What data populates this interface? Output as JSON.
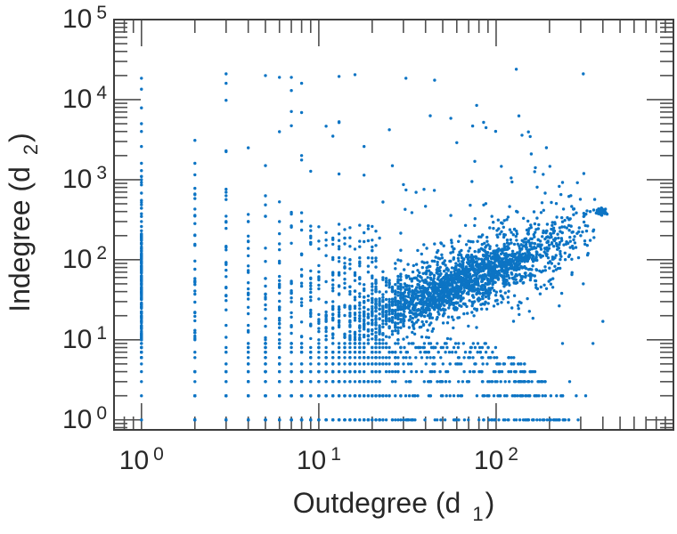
{
  "figure": {
    "background": "#ffffff",
    "frame_color": "#3d3d3d",
    "tick_color": "#4f4f4f",
    "text_color": "#282828"
  },
  "chart_data": {
    "type": "scatter",
    "title": "",
    "xlabel": {
      "text": "Outdegree (d",
      "sub": "1",
      "close": ")"
    },
    "ylabel": {
      "text": "Indegree (d",
      "sub": "2",
      "close": ")"
    },
    "x_scale": "log",
    "y_scale": "log",
    "xlim": [
      0.7,
      1000
    ],
    "ylim": [
      0.75,
      100000
    ],
    "grid": false,
    "legend": "none",
    "marker_color": "#0c74c4",
    "marker_radius": 1.7,
    "seed": 7,
    "x_ticks": [
      {
        "base": "10",
        "exp": "0",
        "value": 1
      },
      {
        "base": "10",
        "exp": "1",
        "value": 10
      },
      {
        "base": "10",
        "exp": "2",
        "value": 100
      }
    ],
    "y_ticks": [
      {
        "base": "10",
        "exp": "0",
        "value": 1
      },
      {
        "base": "10",
        "exp": "1",
        "value": 10
      },
      {
        "base": "10",
        "exp": "2",
        "value": 100
      },
      {
        "base": "10",
        "exp": "3",
        "value": 1000
      },
      {
        "base": "10",
        "exp": "4",
        "value": 10000
      },
      {
        "base": "10",
        "exp": "5",
        "value": 100000
      }
    ],
    "points": [
      [
        1,
        1
      ],
      [
        1,
        2
      ],
      [
        1,
        3
      ],
      [
        1,
        4
      ],
      [
        1,
        5
      ],
      [
        1,
        6
      ],
      [
        1,
        8
      ],
      [
        1,
        230
      ],
      [
        1,
        260
      ],
      [
        1,
        300
      ],
      [
        1,
        1100
      ],
      [
        1,
        1300
      ],
      [
        1,
        1600
      ],
      [
        1,
        2600
      ],
      [
        1,
        4000
      ],
      [
        1,
        5000
      ],
      [
        1,
        7900
      ],
      [
        1,
        13500
      ],
      [
        1,
        18500
      ],
      [
        2,
        1150
      ],
      [
        2,
        1600
      ],
      [
        2,
        3100
      ],
      [
        3,
        760
      ],
      [
        3,
        2300
      ],
      [
        3,
        9800
      ],
      [
        3,
        16000
      ],
      [
        3,
        21000
      ],
      [
        4,
        2500
      ],
      [
        5,
        1500
      ],
      [
        5,
        20000
      ],
      [
        6,
        19000
      ],
      [
        7,
        13000
      ],
      [
        7,
        19000
      ],
      [
        8,
        2000
      ],
      [
        8,
        16000
      ],
      [
        13,
        19500
      ],
      [
        16,
        20500
      ],
      [
        31,
        18500
      ],
      [
        45,
        17500
      ],
      [
        130,
        24000
      ],
      [
        310,
        21000
      ],
      [
        12,
        3500
      ],
      [
        18,
        2600
      ],
      [
        25,
        4200
      ],
      [
        60,
        2900
      ],
      [
        85,
        5200
      ],
      [
        140,
        3600
      ],
      [
        107,
        1470
      ],
      [
        165,
        1260
      ],
      [
        189,
        680
      ],
      [
        205,
        520
      ],
      [
        220,
        340
      ],
      [
        240,
        430
      ],
      [
        260,
        115
      ],
      [
        300,
        200
      ],
      [
        310,
        50
      ],
      [
        330,
        120
      ],
      [
        352,
        9
      ],
      [
        400,
        17
      ],
      [
        237,
        9
      ],
      [
        283,
        2
      ],
      [
        216,
        1
      ],
      [
        290,
        1
      ],
      [
        320,
        2
      ],
      [
        260,
        3
      ]
    ],
    "generators": [
      {
        "kind": "column",
        "x": 1,
        "ly_min": 0.78,
        "ly_max": 2.33,
        "n": 175,
        "pow": 1
      },
      {
        "kind": "column",
        "x": 1,
        "ly_min": 2.33,
        "ly_max": 3.05,
        "n": 12,
        "pow": 1
      },
      {
        "kind": "column",
        "x": 2,
        "ly_min": 0,
        "ly_max": 3.0,
        "n": 52,
        "pow": 1.7
      },
      {
        "kind": "column",
        "x": 3,
        "ly_min": 0,
        "ly_max": 2.9,
        "n": 50,
        "pow": 1.7
      },
      {
        "kind": "column",
        "x": 4,
        "ly_min": 0,
        "ly_max": 2.85,
        "n": 46,
        "pow": 1.7
      },
      {
        "kind": "column",
        "x": 5,
        "ly_min": 0,
        "ly_max": 2.8,
        "n": 45,
        "pow": 1.7
      },
      {
        "kind": "column",
        "x": 6,
        "ly_min": 0,
        "ly_max": 2.75,
        "n": 42,
        "pow": 1.7
      },
      {
        "kind": "column",
        "x": 7,
        "ly_min": 0,
        "ly_max": 2.7,
        "n": 40,
        "pow": 1.7
      },
      {
        "kind": "column",
        "x": 8,
        "ly_min": 0,
        "ly_max": 2.65,
        "n": 38,
        "pow": 1.7
      },
      {
        "kind": "column",
        "x": 9,
        "ly_min": 0,
        "ly_max": 2.6,
        "n": 36,
        "pow": 1.7
      },
      {
        "kind": "columns",
        "x_start": 10,
        "x_end": 22,
        "n_start": 34,
        "n_end": 24,
        "ly_min": 0,
        "ly_max": 2.45,
        "pow": 1.6
      },
      {
        "kind": "row",
        "y": 1,
        "lx_min": 0.15,
        "lx_max": 2.42,
        "n": 135,
        "pow": 1.4
      },
      {
        "kind": "row",
        "y": 2,
        "lx_min": 0.3,
        "lx_max": 2.38,
        "n": 110,
        "pow": 1.4
      },
      {
        "kind": "row",
        "y": 3,
        "lx_min": 0.45,
        "lx_max": 2.28,
        "n": 90,
        "pow": 1.4
      },
      {
        "kind": "row",
        "y": 4,
        "lx_min": 0.5,
        "lx_max": 2.22,
        "n": 75,
        "pow": 1.4
      },
      {
        "kind": "row",
        "y": 5,
        "lx_min": 0.55,
        "lx_max": 2.16,
        "n": 64,
        "pow": 1.3
      },
      {
        "kind": "row",
        "y": 6,
        "lx_min": 0.6,
        "lx_max": 2.1,
        "n": 54,
        "pow": 1.3
      },
      {
        "kind": "row",
        "y": 7,
        "lx_min": 0.6,
        "lx_max": 2.05,
        "n": 47,
        "pow": 1.3
      },
      {
        "kind": "row",
        "y": 8,
        "lx_min": 0.65,
        "lx_max": 2.0,
        "n": 41,
        "pow": 1.3
      },
      {
        "kind": "row",
        "y": 9,
        "lx_min": 0.65,
        "lx_max": 1.95,
        "n": 37,
        "pow": 1.3
      },
      {
        "kind": "gauss",
        "n": 1600,
        "lx_mu": 1.78,
        "lx_sig": 0.33,
        "lx_min": 1.02,
        "lx_max": 2.56,
        "slope": 0.86,
        "intercept": 0.17,
        "ly_sig": 0.22
      },
      {
        "kind": "gauss",
        "n": 520,
        "lx_mu": 1.86,
        "lx_sig": 0.24,
        "lx_min": 1.1,
        "lx_max": 2.5,
        "slope": 0.86,
        "intercept": 0.17,
        "ly_sig": 0.11
      },
      {
        "kind": "halo",
        "n": 115,
        "lx_min": 0.95,
        "lx_max": 2.5,
        "slope": 0.86,
        "intercept": 0.17,
        "dy0": 0.12,
        "dy_sig": 0.45,
        "dir": 1,
        "ly_min": 0,
        "ly_max": 3.55
      },
      {
        "kind": "halo",
        "n": 45,
        "lx_min": 1.3,
        "lx_max": 2.45,
        "slope": 0.86,
        "intercept": 0.17,
        "dy0": 0.12,
        "dy_sig": 0.3,
        "dir": -1,
        "ly_min": 0.9,
        "ly_max": 5
      },
      {
        "kind": "uniform",
        "n": 26,
        "lx_min": 0.4,
        "lx_max": 2.35,
        "ly_min": 3.05,
        "ly_max": 3.95
      },
      {
        "kind": "uniform",
        "n": 10,
        "lx_min": 0.9,
        "lx_max": 2.2,
        "ly_min": 2.6,
        "ly_max": 3.05
      },
      {
        "kind": "blob",
        "n": 55,
        "lx_mu": 2.592,
        "lx_sig": 0.013,
        "ly_mu": 2.6,
        "ly_sig": 0.02
      }
    ]
  }
}
